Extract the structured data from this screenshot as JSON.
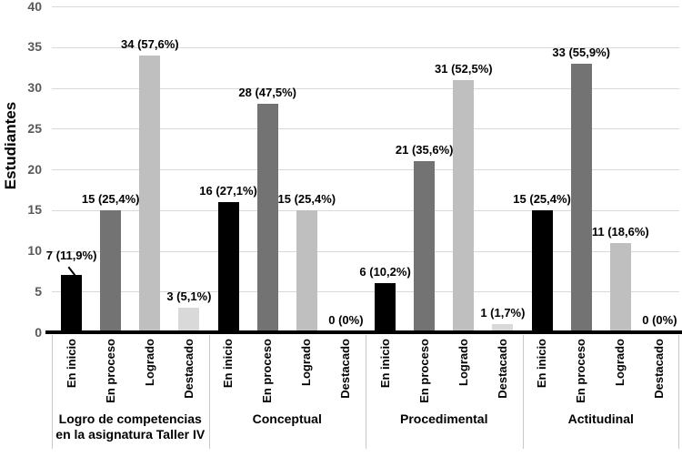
{
  "chart_data": {
    "type": "bar",
    "title": "",
    "ylabel": "Estudiantes",
    "xlabel": "",
    "ylim": [
      0,
      40
    ],
    "yticks": [
      0,
      5,
      10,
      15,
      20,
      25,
      30,
      35,
      40
    ],
    "grid": true,
    "legend": "none",
    "categories_per_group": [
      "En inicio",
      "En proceso",
      "Logrado",
      "Destacado"
    ],
    "bar_colors": [
      "#000000",
      "#737373",
      "#bfbfbf",
      "#d9d9d9"
    ],
    "groups": [
      {
        "label": "Logro de competencias en la asignatura Taller IV",
        "label_lines": [
          "Logro de competencias",
          "en la asignatura Taller IV"
        ],
        "values": [
          7,
          15,
          34,
          3
        ],
        "data_labels": [
          "7 (11,9%)",
          "15 (25,4%)",
          "34 (57,6%)",
          "3 (5,1%)"
        ]
      },
      {
        "label": "Conceptual",
        "label_lines": [
          "Conceptual"
        ],
        "values": [
          16,
          28,
          15,
          0
        ],
        "data_labels": [
          "16 (27,1%)",
          "28 (47,5%)",
          "15 (25,4%)",
          "0 (0%)"
        ]
      },
      {
        "label": "Procedimental",
        "label_lines": [
          "Procedimental"
        ],
        "values": [
          6,
          21,
          31,
          1
        ],
        "data_labels": [
          "6 (10,2%)",
          "21 (35,6%)",
          "31 (52,5%)",
          "1 (1,7%)"
        ]
      },
      {
        "label": "Actitudinal",
        "label_lines": [
          "Actitudinal"
        ],
        "values": [
          15,
          33,
          11,
          0
        ],
        "data_labels": [
          "15 (25,4%)",
          "33 (55,9%)",
          "11 (18,6%)",
          "0 (0%)"
        ]
      }
    ],
    "colors": {
      "grid": "#d9d9d9",
      "axis_line": "#000000",
      "tick_text": "#595959",
      "separator": "#c9c9c9",
      "label_text": "#000000",
      "background": "#ffffff"
    },
    "annotations": {
      "first_bar_has_leader_line": true
    }
  }
}
